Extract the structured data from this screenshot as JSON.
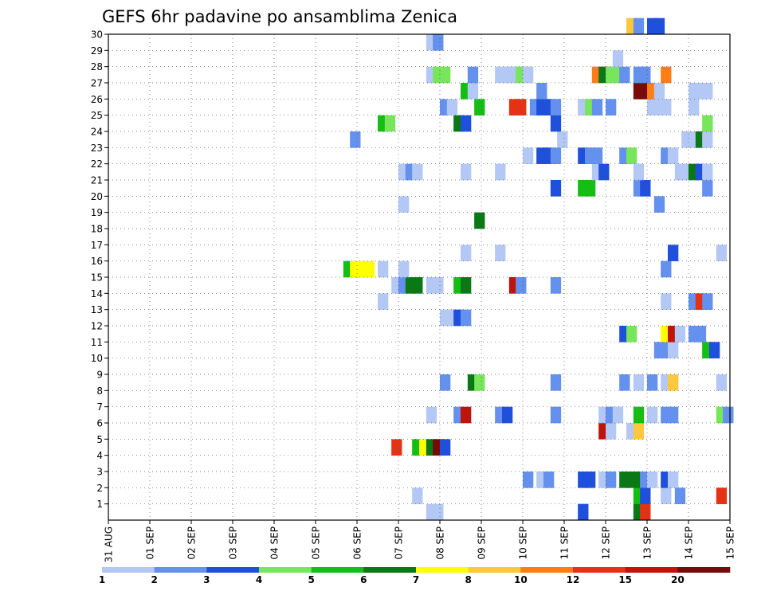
{
  "chart_data": {
    "type": "heatmap",
    "title": "GEFS 6hr padavine po ansamblima Zenica",
    "x_tick_labels": [
      "31 AUG",
      "01 SEP",
      "02 SEP",
      "03 SEP",
      "04 SEP",
      "05 SEP",
      "06 SEP",
      "07 SEP",
      "08 SEP",
      "09 SEP",
      "10 SEP",
      "11 SEP",
      "12 SEP",
      "13 SEP",
      "14 SEP",
      "15 SEP"
    ],
    "y_tick_labels": [
      "1",
      "2",
      "3",
      "4",
      "5",
      "6",
      "7",
      "8",
      "9",
      "10",
      "11",
      "12",
      "13",
      "14",
      "15",
      "16",
      "17",
      "18",
      "19",
      "20",
      "21",
      "22",
      "23",
      "24",
      "25",
      "26",
      "27",
      "28",
      "29",
      "30"
    ],
    "x_range_days": [
      0,
      15
    ],
    "y_range_members": [
      0,
      30
    ],
    "grid": "dotted",
    "colorbar": {
      "levels": [
        1,
        2,
        3,
        4,
        5,
        6,
        7,
        8,
        10,
        12,
        15,
        20
      ],
      "level_labels": [
        "1",
        "2",
        "3",
        "4",
        "5",
        "6",
        "7",
        "8",
        "10",
        "12",
        "15",
        "20"
      ],
      "colors": [
        "#b4c8f5",
        "#6490ee",
        "#1e50dc",
        "#78e65a",
        "#14be14",
        "#0a7814",
        "#ffff00",
        "#ffc83c",
        "#ff7d14",
        "#e63214",
        "#be140a",
        "#780a0a"
      ]
    },
    "cells": [
      [
        7.67,
        0,
        1
      ],
      [
        7.83,
        0,
        1
      ],
      [
        12.67,
        0,
        6
      ],
      [
        12.83,
        0,
        10
      ],
      [
        11.33,
        0,
        3
      ],
      [
        7.33,
        1,
        1
      ],
      [
        12.67,
        1,
        5
      ],
      [
        12.83,
        1,
        3
      ],
      [
        13.33,
        1,
        1
      ],
      [
        13.67,
        1,
        2
      ],
      [
        14.67,
        1,
        10
      ],
      [
        10.0,
        2,
        2
      ],
      [
        10.33,
        2,
        1
      ],
      [
        10.5,
        2,
        2
      ],
      [
        11.33,
        2,
        3
      ],
      [
        11.5,
        2,
        3
      ],
      [
        11.83,
        2,
        1
      ],
      [
        12.0,
        2,
        2
      ],
      [
        12.33,
        2,
        6
      ],
      [
        12.5,
        2,
        6
      ],
      [
        12.67,
        2,
        6
      ],
      [
        12.83,
        2,
        2
      ],
      [
        13.0,
        2,
        1
      ],
      [
        13.33,
        2,
        3
      ],
      [
        13.5,
        2,
        1
      ],
      [
        6.83,
        4,
        10
      ],
      [
        7.33,
        4,
        5
      ],
      [
        7.5,
        4,
        7
      ],
      [
        7.67,
        4,
        6
      ],
      [
        7.83,
        4,
        12
      ],
      [
        8.0,
        4,
        3
      ],
      [
        11.83,
        5,
        11
      ],
      [
        12.0,
        5,
        1
      ],
      [
        12.5,
        5,
        1
      ],
      [
        12.67,
        5,
        8
      ],
      [
        7.67,
        6,
        1
      ],
      [
        8.33,
        6,
        2
      ],
      [
        8.5,
        6,
        11
      ],
      [
        9.33,
        6,
        2
      ],
      [
        9.5,
        6,
        3
      ],
      [
        10.67,
        6,
        2
      ],
      [
        11.83,
        6,
        1
      ],
      [
        12.0,
        6,
        2
      ],
      [
        12.17,
        6,
        1
      ],
      [
        12.67,
        6,
        5
      ],
      [
        13.0,
        6,
        1
      ],
      [
        13.33,
        6,
        2
      ],
      [
        13.5,
        6,
        2
      ],
      [
        14.67,
        6,
        4
      ],
      [
        14.83,
        6,
        2
      ],
      [
        8.0,
        8,
        2
      ],
      [
        8.67,
        8,
        6
      ],
      [
        8.83,
        8,
        4
      ],
      [
        10.67,
        8,
        2
      ],
      [
        12.33,
        8,
        2
      ],
      [
        12.67,
        8,
        1
      ],
      [
        13.0,
        8,
        2
      ],
      [
        13.33,
        8,
        1
      ],
      [
        13.5,
        8,
        8
      ],
      [
        14.67,
        8,
        1
      ],
      [
        13.17,
        10,
        2
      ],
      [
        13.33,
        10,
        2
      ],
      [
        13.5,
        10,
        1
      ],
      [
        14.33,
        10,
        5
      ],
      [
        14.5,
        10,
        3
      ],
      [
        12.33,
        11,
        3
      ],
      [
        12.5,
        11,
        4
      ],
      [
        13.33,
        11,
        7
      ],
      [
        13.5,
        11,
        11
      ],
      [
        13.67,
        11,
        1
      ],
      [
        14.0,
        11,
        2
      ],
      [
        14.17,
        11,
        2
      ],
      [
        8.0,
        12,
        1
      ],
      [
        8.17,
        12,
        1
      ],
      [
        8.33,
        12,
        3
      ],
      [
        8.5,
        12,
        2
      ],
      [
        6.5,
        13,
        1
      ],
      [
        13.33,
        13,
        1
      ],
      [
        14.0,
        13,
        2
      ],
      [
        14.17,
        13,
        10
      ],
      [
        14.33,
        13,
        2
      ],
      [
        6.83,
        14,
        1
      ],
      [
        7.0,
        14,
        2
      ],
      [
        7.17,
        14,
        6
      ],
      [
        7.33,
        14,
        6
      ],
      [
        7.67,
        14,
        1
      ],
      [
        7.83,
        14,
        1
      ],
      [
        8.33,
        14,
        5
      ],
      [
        8.5,
        14,
        6
      ],
      [
        9.67,
        14,
        11
      ],
      [
        9.83,
        14,
        2
      ],
      [
        10.67,
        14,
        2
      ],
      [
        5.67,
        15,
        5
      ],
      [
        5.83,
        15,
        7
      ],
      [
        6.0,
        15,
        7
      ],
      [
        6.17,
        15,
        7
      ],
      [
        6.5,
        15,
        1
      ],
      [
        7.0,
        15,
        1
      ],
      [
        13.33,
        15,
        2
      ],
      [
        8.5,
        16,
        1
      ],
      [
        9.33,
        16,
        1
      ],
      [
        13.5,
        16,
        3
      ],
      [
        14.67,
        16,
        1
      ],
      [
        8.83,
        18,
        6
      ],
      [
        7.0,
        19,
        1
      ],
      [
        13.17,
        19,
        2
      ],
      [
        10.67,
        20,
        3
      ],
      [
        11.33,
        20,
        5
      ],
      [
        11.5,
        20,
        5
      ],
      [
        12.67,
        20,
        2
      ],
      [
        12.83,
        20,
        3
      ],
      [
        14.33,
        20,
        2
      ],
      [
        7.0,
        21,
        1
      ],
      [
        7.17,
        21,
        2
      ],
      [
        7.33,
        21,
        1
      ],
      [
        8.5,
        21,
        1
      ],
      [
        9.33,
        21,
        1
      ],
      [
        11.67,
        21,
        1
      ],
      [
        11.83,
        21,
        3
      ],
      [
        12.67,
        21,
        1
      ],
      [
        13.67,
        21,
        1
      ],
      [
        13.83,
        21,
        1
      ],
      [
        14.0,
        21,
        6
      ],
      [
        14.17,
        21,
        3
      ],
      [
        14.33,
        21,
        1
      ],
      [
        10.0,
        22,
        1
      ],
      [
        10.33,
        22,
        3
      ],
      [
        10.5,
        22,
        3
      ],
      [
        10.67,
        22,
        2
      ],
      [
        11.33,
        22,
        3
      ],
      [
        11.5,
        22,
        2
      ],
      [
        11.67,
        22,
        2
      ],
      [
        12.33,
        22,
        2
      ],
      [
        12.5,
        22,
        4
      ],
      [
        13.33,
        22,
        2
      ],
      [
        13.5,
        22,
        1
      ],
      [
        5.83,
        23,
        2
      ],
      [
        10.83,
        23,
        1
      ],
      [
        13.83,
        23,
        1
      ],
      [
        14.0,
        23,
        1
      ],
      [
        14.17,
        23,
        6
      ],
      [
        14.33,
        23,
        1
      ],
      [
        6.5,
        24,
        5
      ],
      [
        6.67,
        24,
        4
      ],
      [
        8.33,
        24,
        6
      ],
      [
        8.5,
        24,
        3
      ],
      [
        10.67,
        24,
        3
      ],
      [
        14.33,
        24,
        4
      ],
      [
        8.0,
        25,
        2
      ],
      [
        8.17,
        25,
        1
      ],
      [
        8.83,
        25,
        5
      ],
      [
        9.67,
        25,
        10
      ],
      [
        9.83,
        25,
        10
      ],
      [
        10.17,
        25,
        2
      ],
      [
        10.33,
        25,
        3
      ],
      [
        10.5,
        25,
        3
      ],
      [
        10.67,
        25,
        2
      ],
      [
        11.33,
        25,
        1
      ],
      [
        11.5,
        25,
        4
      ],
      [
        11.67,
        25,
        2
      ],
      [
        12.0,
        25,
        2
      ],
      [
        13.0,
        25,
        1
      ],
      [
        13.17,
        25,
        1
      ],
      [
        13.33,
        25,
        1
      ],
      [
        14.0,
        25,
        1
      ],
      [
        8.5,
        26,
        5
      ],
      [
        8.67,
        26,
        1
      ],
      [
        10.33,
        26,
        2
      ],
      [
        12.67,
        26,
        12
      ],
      [
        12.83,
        26,
        12
      ],
      [
        13.0,
        26,
        9
      ],
      [
        13.17,
        26,
        1
      ],
      [
        14.0,
        26,
        1
      ],
      [
        14.17,
        26,
        1
      ],
      [
        14.33,
        26,
        1
      ],
      [
        7.67,
        27,
        1
      ],
      [
        7.83,
        27,
        4
      ],
      [
        8.0,
        27,
        4
      ],
      [
        8.67,
        27,
        2
      ],
      [
        9.33,
        27,
        1
      ],
      [
        9.5,
        27,
        1
      ],
      [
        9.67,
        27,
        1
      ],
      [
        9.83,
        27,
        4
      ],
      [
        10.0,
        27,
        1
      ],
      [
        11.67,
        27,
        9
      ],
      [
        11.83,
        27,
        6
      ],
      [
        12.0,
        27,
        4
      ],
      [
        12.17,
        27,
        4
      ],
      [
        12.33,
        27,
        2
      ],
      [
        12.67,
        27,
        2
      ],
      [
        12.83,
        27,
        2
      ],
      [
        13.33,
        27,
        9
      ],
      [
        12.17,
        28,
        1
      ],
      [
        7.67,
        29,
        1
      ],
      [
        7.83,
        29,
        2
      ],
      [
        12.5,
        30,
        8
      ],
      [
        12.67,
        30,
        2
      ],
      [
        13.0,
        30,
        3
      ],
      [
        13.17,
        30,
        3
      ]
    ]
  }
}
